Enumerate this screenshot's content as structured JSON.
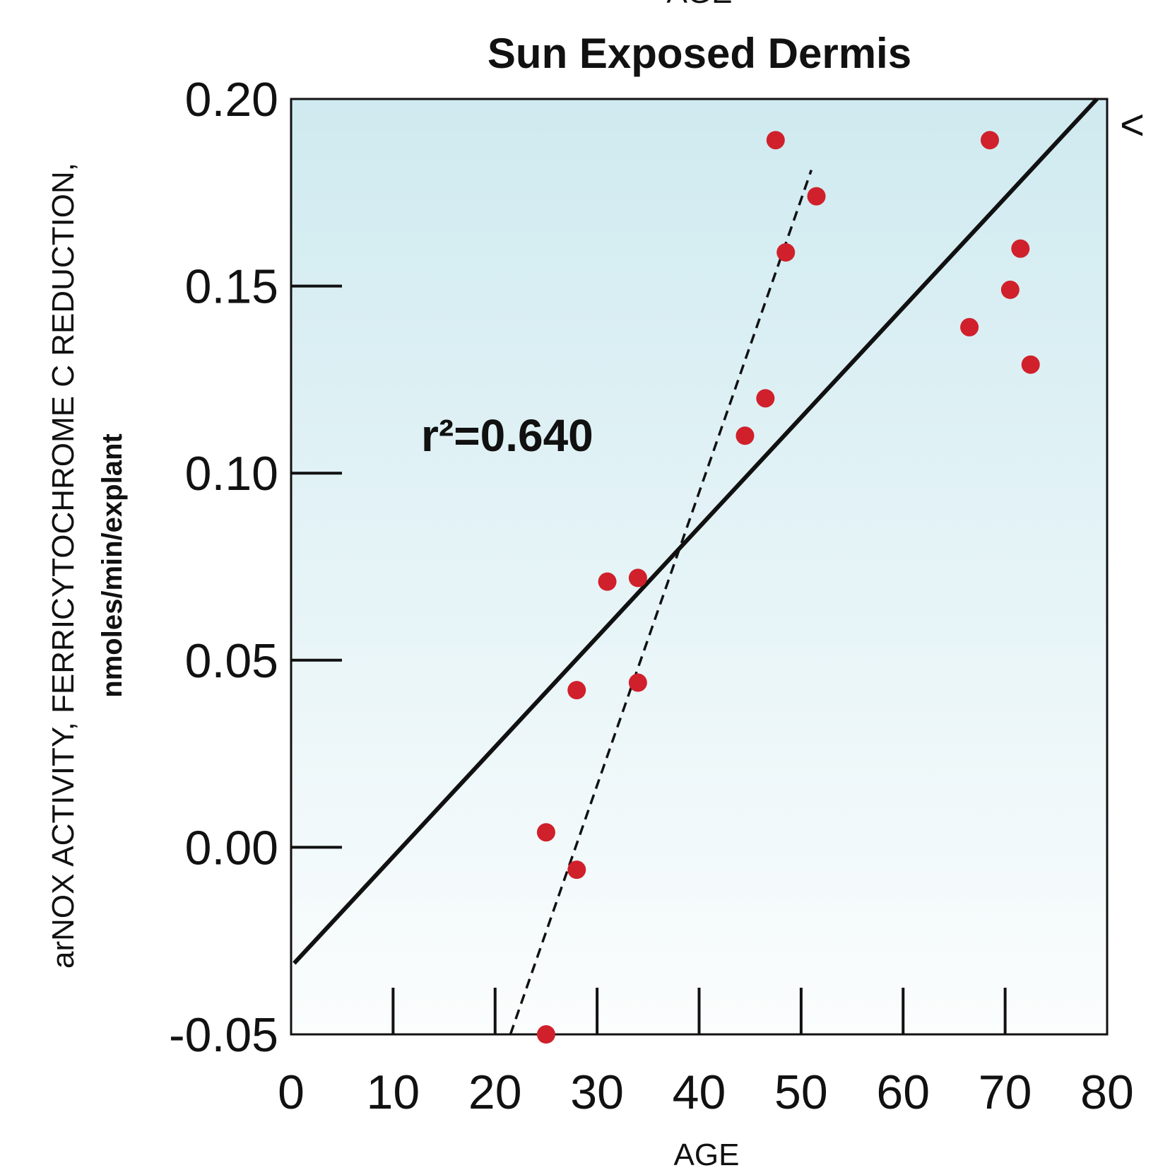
{
  "chart_data": {
    "type": "scatter",
    "top_cut_label": "AGE",
    "title": "Sun Exposed Dermis",
    "xlabel": "AGE",
    "ylabel_line1": "arNOX ACTIVITY, FERRICYTOCHROME C REDUCTION,",
    "ylabel_line2": "nmoles/min/explant",
    "edge_mark": "<",
    "xlim": [
      0,
      80
    ],
    "ylim": [
      -0.05,
      0.2
    ],
    "x_ticks": [
      0,
      10,
      20,
      30,
      40,
      50,
      60,
      70,
      80
    ],
    "x_tick_labels": [
      "0",
      "10",
      "20",
      "30",
      "40",
      "50",
      "60",
      "70",
      "80"
    ],
    "y_ticks": [
      -0.05,
      0.0,
      0.05,
      0.1,
      0.15,
      0.2
    ],
    "y_tick_labels": [
      "-0.05",
      "0.00",
      "0.05",
      "0.10",
      "0.15",
      "0.20"
    ],
    "annotation": "r²=0.640",
    "background_gradient": [
      "#cfeaf0",
      "#fbfdfd"
    ],
    "point_color": "#d0202b",
    "points": [
      {
        "x": 25,
        "y": -0.05
      },
      {
        "x": 25,
        "y": 0.004
      },
      {
        "x": 28,
        "y": -0.006
      },
      {
        "x": 28,
        "y": 0.042
      },
      {
        "x": 31,
        "y": 0.071
      },
      {
        "x": 34,
        "y": 0.072
      },
      {
        "x": 34,
        "y": 0.044
      },
      {
        "x": 44.5,
        "y": 0.11
      },
      {
        "x": 46.5,
        "y": 0.12
      },
      {
        "x": 47.5,
        "y": 0.189
      },
      {
        "x": 48.5,
        "y": 0.159
      },
      {
        "x": 51.5,
        "y": 0.174
      },
      {
        "x": 66.5,
        "y": 0.139
      },
      {
        "x": 68.5,
        "y": 0.189
      },
      {
        "x": 70.5,
        "y": 0.149
      },
      {
        "x": 71.5,
        "y": 0.16
      },
      {
        "x": 72.5,
        "y": 0.129
      }
    ],
    "fit_lines": [
      {
        "style": "solid",
        "x": [
          0.3,
          79
        ],
        "y": [
          -0.031,
          0.2
        ]
      },
      {
        "style": "dashed",
        "x": [
          21.5,
          51
        ],
        "y": [
          -0.05,
          0.181
        ]
      }
    ]
  }
}
